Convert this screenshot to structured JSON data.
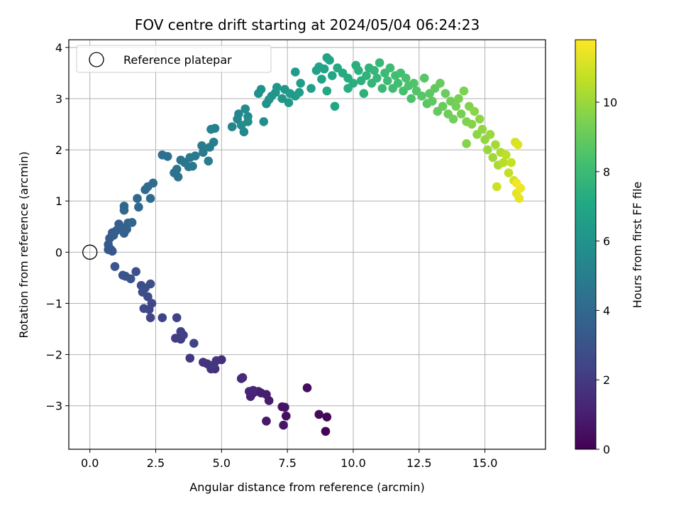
{
  "chart_data": {
    "type": "scatter",
    "title": "FOV centre drift starting at 2024/05/04 06:24:23",
    "xlabel": "Angular distance from reference (arcmin)",
    "ylabel": "Rotation from reference (arcmin)",
    "xlim": [
      -0.8,
      17.3
    ],
    "ylim": [
      -3.85,
      4.15
    ],
    "xticks": [
      0.0,
      2.5,
      5.0,
      7.5,
      10.0,
      12.5,
      15.0
    ],
    "xtick_labels": [
      "0.0",
      "2.5",
      "5.0",
      "7.5",
      "10.0",
      "12.5",
      "15.0"
    ],
    "yticks": [
      -3,
      -2,
      -1,
      0,
      1,
      2,
      3,
      4
    ],
    "ytick_labels": [
      "−3",
      "−2",
      "−1",
      "0",
      "1",
      "2",
      "3",
      "4"
    ],
    "grid": true,
    "legend": {
      "position": "top-left",
      "entries": [
        "Reference platepar"
      ]
    },
    "reference_point": {
      "x": 0.0,
      "y": 0.0
    },
    "colorbar": {
      "label": "Hours from first FF file",
      "colormap": "viridis",
      "range": [
        0,
        11.8
      ],
      "ticks": [
        0,
        2,
        4,
        6,
        8,
        10
      ],
      "tick_labels": [
        "0",
        "2",
        "4",
        "6",
        "8",
        "10"
      ]
    },
    "series": [
      {
        "columns": [
          "x",
          "y",
          "hours"
        ],
        "points": [
          [
            8.95,
            -3.5,
            0.1
          ],
          [
            9.0,
            -3.22,
            0.2
          ],
          [
            8.7,
            -3.17,
            0.3
          ],
          [
            8.25,
            -2.65,
            0.4
          ],
          [
            7.45,
            -3.2,
            0.5
          ],
          [
            7.3,
            -3.02,
            0.6
          ],
          [
            7.4,
            -3.03,
            0.65
          ],
          [
            7.35,
            -3.38,
            0.7
          ],
          [
            6.7,
            -3.3,
            0.8
          ],
          [
            6.8,
            -2.9,
            0.9
          ],
          [
            6.7,
            -2.78,
            0.95
          ],
          [
            6.5,
            -2.75,
            1.0
          ],
          [
            6.4,
            -2.72,
            1.05
          ],
          [
            6.2,
            -2.75,
            1.1
          ],
          [
            6.1,
            -2.82,
            1.15
          ],
          [
            6.2,
            -2.7,
            1.2
          ],
          [
            6.05,
            -2.72,
            1.25
          ],
          [
            5.8,
            -2.45,
            1.35
          ],
          [
            5.75,
            -2.47,
            1.4
          ],
          [
            5.0,
            -2.1,
            1.55
          ],
          [
            4.75,
            -2.28,
            1.6
          ],
          [
            4.6,
            -2.28,
            1.65
          ],
          [
            4.45,
            -2.18,
            1.7
          ],
          [
            4.3,
            -2.15,
            1.75
          ],
          [
            4.8,
            -2.12,
            1.8
          ],
          [
            4.7,
            -2.2,
            1.85
          ],
          [
            3.8,
            -2.07,
            1.95
          ],
          [
            3.45,
            -1.7,
            2.05
          ],
          [
            3.25,
            -1.68,
            2.1
          ],
          [
            3.4,
            -1.67,
            2.15
          ],
          [
            3.45,
            -1.55,
            2.2
          ],
          [
            3.55,
            -1.62,
            2.25
          ],
          [
            3.3,
            -1.28,
            2.3
          ],
          [
            3.95,
            -1.78,
            2.35
          ],
          [
            2.75,
            -1.28,
            2.4
          ],
          [
            2.3,
            -1.28,
            2.45
          ],
          [
            2.25,
            -1.12,
            2.5
          ],
          [
            2.05,
            -1.1,
            2.55
          ],
          [
            2.35,
            -1.0,
            2.6
          ],
          [
            2.2,
            -0.87,
            2.65
          ],
          [
            2.0,
            -0.78,
            2.7
          ],
          [
            1.95,
            -0.65,
            2.75
          ],
          [
            2.3,
            -0.62,
            2.8
          ],
          [
            2.1,
            -0.7,
            2.85
          ],
          [
            1.75,
            -0.38,
            2.9
          ],
          [
            1.55,
            -0.52,
            2.95
          ],
          [
            1.35,
            -0.47,
            3.0
          ],
          [
            1.25,
            -0.45,
            3.05
          ],
          [
            0.95,
            -0.28,
            3.1
          ],
          [
            0.8,
            0.05,
            3.15
          ],
          [
            0.7,
            0.05,
            3.2
          ],
          [
            0.85,
            0.02,
            3.25
          ],
          [
            0.7,
            0.15,
            3.3
          ],
          [
            0.75,
            0.27,
            3.35
          ],
          [
            0.9,
            0.33,
            3.4
          ],
          [
            0.85,
            0.38,
            3.45
          ],
          [
            1.0,
            0.42,
            3.5
          ],
          [
            1.1,
            0.55,
            3.55
          ],
          [
            1.3,
            0.37,
            3.6
          ],
          [
            1.4,
            0.45,
            3.65
          ],
          [
            1.25,
            0.47,
            3.7
          ],
          [
            1.45,
            0.57,
            3.75
          ],
          [
            1.6,
            0.58,
            3.8
          ],
          [
            1.3,
            0.82,
            3.85
          ],
          [
            1.3,
            0.9,
            3.9
          ],
          [
            1.85,
            0.88,
            3.95
          ],
          [
            1.8,
            1.05,
            4.0
          ],
          [
            2.1,
            1.22,
            4.05
          ],
          [
            2.3,
            1.05,
            4.1
          ],
          [
            2.2,
            1.28,
            4.15
          ],
          [
            2.4,
            1.35,
            4.2
          ],
          [
            2.75,
            1.9,
            4.3
          ],
          [
            2.95,
            1.87,
            4.35
          ],
          [
            3.2,
            1.55,
            4.4
          ],
          [
            3.3,
            1.62,
            4.45
          ],
          [
            3.35,
            1.47,
            4.5
          ],
          [
            3.45,
            1.8,
            4.55
          ],
          [
            3.6,
            1.75,
            4.6
          ],
          [
            3.75,
            1.67,
            4.65
          ],
          [
            3.9,
            1.68,
            4.7
          ],
          [
            3.8,
            1.85,
            4.75
          ],
          [
            4.0,
            1.88,
            4.8
          ],
          [
            4.3,
            1.95,
            4.85
          ],
          [
            4.25,
            2.08,
            4.9
          ],
          [
            4.5,
            1.78,
            4.95
          ],
          [
            4.55,
            2.05,
            5.0
          ],
          [
            4.7,
            2.15,
            5.05
          ],
          [
            4.6,
            2.4,
            5.1
          ],
          [
            4.75,
            2.42,
            5.15
          ],
          [
            5.4,
            2.45,
            5.3
          ],
          [
            5.6,
            2.6,
            5.4
          ],
          [
            5.65,
            2.7,
            5.45
          ],
          [
            5.85,
            2.35,
            5.5
          ],
          [
            5.9,
            2.8,
            5.55
          ],
          [
            6.0,
            2.65,
            5.6
          ],
          [
            5.75,
            2.48,
            5.65
          ],
          [
            6.0,
            2.55,
            5.7
          ],
          [
            6.6,
            2.55,
            5.8
          ],
          [
            6.4,
            3.1,
            5.85
          ],
          [
            6.5,
            3.18,
            5.9
          ],
          [
            6.7,
            2.9,
            5.95
          ],
          [
            6.8,
            2.98,
            6.0
          ],
          [
            6.9,
            3.05,
            6.05
          ],
          [
            7.05,
            3.12,
            6.1
          ],
          [
            7.1,
            3.22,
            6.15
          ],
          [
            7.3,
            3.0,
            6.2
          ],
          [
            7.4,
            3.18,
            6.25
          ],
          [
            7.55,
            2.92,
            6.3
          ],
          [
            7.6,
            3.1,
            6.35
          ],
          [
            7.8,
            3.05,
            6.4
          ],
          [
            7.8,
            3.52,
            6.45
          ],
          [
            7.95,
            3.12,
            6.5
          ],
          [
            8.0,
            3.3,
            6.55
          ],
          [
            8.4,
            3.2,
            6.65
          ],
          [
            8.6,
            3.55,
            6.7
          ],
          [
            8.7,
            3.62,
            6.75
          ],
          [
            8.9,
            3.58,
            6.8
          ],
          [
            8.8,
            3.38,
            6.85
          ],
          [
            9.0,
            3.8,
            6.9
          ],
          [
            9.1,
            3.75,
            6.95
          ],
          [
            9.2,
            3.45,
            7.0
          ],
          [
            9.3,
            2.85,
            7.05
          ],
          [
            9.0,
            3.15,
            7.1
          ],
          [
            9.4,
            3.6,
            7.15
          ],
          [
            9.6,
            3.5,
            7.2
          ],
          [
            9.8,
            3.4,
            7.25
          ],
          [
            9.8,
            3.2,
            7.3
          ],
          [
            10.0,
            3.3,
            7.35
          ],
          [
            10.1,
            3.65,
            7.4
          ],
          [
            10.2,
            3.55,
            7.45
          ],
          [
            10.3,
            3.35,
            7.5
          ],
          [
            10.4,
            3.1,
            7.55
          ],
          [
            10.5,
            3.45,
            7.6
          ],
          [
            10.6,
            3.6,
            7.65
          ],
          [
            10.7,
            3.3,
            7.7
          ],
          [
            10.8,
            3.55,
            7.75
          ],
          [
            10.9,
            3.4,
            7.8
          ],
          [
            11.0,
            3.7,
            7.85
          ],
          [
            11.1,
            3.2,
            7.9
          ],
          [
            11.2,
            3.5,
            7.95
          ],
          [
            11.3,
            3.35,
            8.0
          ],
          [
            11.4,
            3.6,
            8.05
          ],
          [
            11.5,
            3.2,
            8.1
          ],
          [
            11.6,
            3.45,
            8.15
          ],
          [
            11.7,
            3.3,
            8.2
          ],
          [
            11.8,
            3.5,
            8.25
          ],
          [
            11.9,
            3.15,
            8.3
          ],
          [
            12.0,
            3.4,
            8.35
          ],
          [
            12.1,
            3.25,
            8.4
          ],
          [
            12.2,
            3.0,
            8.45
          ],
          [
            12.3,
            3.3,
            8.5
          ],
          [
            12.4,
            3.15,
            8.55
          ],
          [
            12.6,
            3.05,
            8.65
          ],
          [
            12.7,
            3.4,
            8.7
          ],
          [
            12.8,
            2.9,
            8.75
          ],
          [
            12.9,
            3.1,
            8.8
          ],
          [
            13.0,
            2.95,
            8.85
          ],
          [
            13.1,
            3.2,
            8.9
          ],
          [
            13.2,
            2.75,
            8.95
          ],
          [
            13.3,
            3.3,
            9.0
          ],
          [
            13.4,
            2.85,
            9.05
          ],
          [
            13.5,
            3.1,
            9.1
          ],
          [
            13.6,
            2.7,
            9.15
          ],
          [
            13.7,
            2.95,
            9.2
          ],
          [
            13.8,
            2.6,
            9.25
          ],
          [
            13.9,
            2.85,
            9.3
          ],
          [
            14.0,
            3.0,
            9.35
          ],
          [
            14.1,
            2.7,
            9.4
          ],
          [
            14.2,
            3.15,
            9.45
          ],
          [
            14.3,
            2.55,
            9.5
          ],
          [
            14.4,
            2.85,
            9.55
          ],
          [
            14.3,
            2.12,
            9.6
          ],
          [
            14.5,
            2.5,
            9.65
          ],
          [
            14.6,
            2.75,
            9.7
          ],
          [
            14.7,
            2.3,
            9.75
          ],
          [
            14.8,
            2.6,
            9.8
          ],
          [
            14.9,
            2.4,
            9.85
          ],
          [
            15.0,
            2.2,
            9.9
          ],
          [
            15.1,
            2.0,
            9.95
          ],
          [
            15.2,
            2.3,
            10.0
          ],
          [
            15.3,
            1.85,
            10.1
          ],
          [
            15.4,
            2.1,
            10.2
          ],
          [
            15.5,
            1.7,
            10.3
          ],
          [
            15.6,
            1.95,
            10.4
          ],
          [
            15.7,
            1.75,
            10.5
          ],
          [
            15.8,
            1.9,
            10.6
          ],
          [
            15.9,
            1.55,
            10.7
          ],
          [
            16.0,
            1.75,
            10.8
          ],
          [
            15.45,
            1.28,
            10.9
          ],
          [
            16.1,
            1.4,
            11.0
          ],
          [
            16.15,
            2.15,
            11.1
          ],
          [
            16.25,
            2.1,
            11.2
          ],
          [
            16.2,
            1.15,
            11.3
          ],
          [
            16.3,
            1.05,
            11.4
          ],
          [
            16.35,
            1.25,
            11.5
          ],
          [
            16.2,
            1.35,
            11.6
          ]
        ]
      }
    ]
  }
}
